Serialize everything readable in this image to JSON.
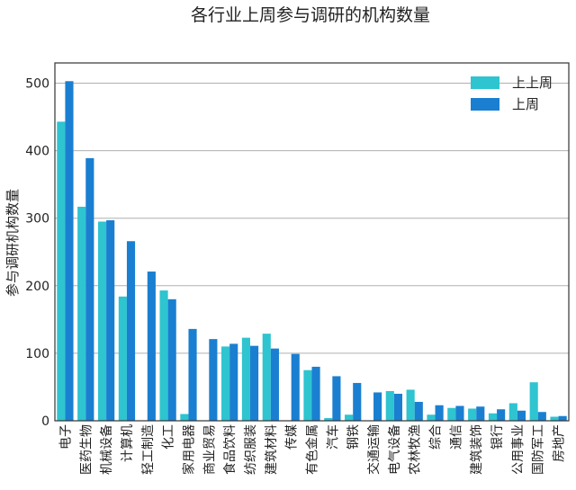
{
  "chart_data": {
    "type": "bar",
    "title": "各行业上周参与调研的机构数量",
    "xlabel": "",
    "ylabel": "参与调研机构数量",
    "ylim": [
      0,
      530
    ],
    "yticks": [
      0,
      100,
      200,
      300,
      400,
      500
    ],
    "grid": true,
    "legend_position": "top-right",
    "categories": [
      "电子",
      "医药生物",
      "机械设备",
      "计算机",
      "轻工制造",
      "化工",
      "家用电器",
      "商业贸易",
      "食品饮料",
      "纺织服装",
      "建筑材料",
      "传媒",
      "有色金属",
      "汽车",
      "钢铁",
      "交通运输",
      "电气设备",
      "农林牧渔",
      "综合",
      "通信",
      "建筑装饰",
      "银行",
      "公用事业",
      "国防军工",
      "房地产"
    ],
    "series": [
      {
        "name": "上上周",
        "color": "#2ec4d0",
        "values": [
          443,
          317,
          295,
          184,
          0,
          193,
          10,
          0,
          110,
          123,
          129,
          0,
          75,
          4,
          9,
          0,
          44,
          46,
          9,
          19,
          18,
          11,
          26,
          57,
          6
        ]
      },
      {
        "name": "上周",
        "color": "#1a7fd1",
        "values": [
          503,
          389,
          297,
          266,
          221,
          180,
          136,
          121,
          114,
          111,
          107,
          99,
          80,
          66,
          56,
          42,
          40,
          28,
          23,
          22,
          21,
          17,
          15,
          13,
          7
        ]
      }
    ]
  }
}
